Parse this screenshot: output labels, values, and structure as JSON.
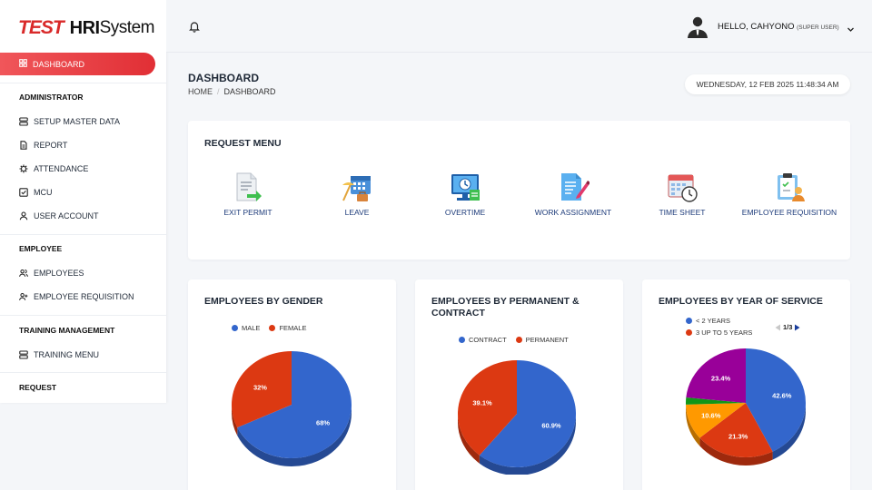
{
  "brand": {
    "test": "TEST",
    "hri": "HRI",
    "system": "System"
  },
  "sidebar": {
    "active": "DASHBOARD",
    "sections": [
      {
        "title": "ADMINISTRATOR",
        "items": [
          "SETUP MASTER DATA",
          "REPORT",
          "ATTENDANCE",
          "MCU",
          "USER ACCOUNT"
        ]
      },
      {
        "title": "EMPLOYEE",
        "items": [
          "EMPLOYEES",
          "EMPLOYEE REQUISITION"
        ]
      },
      {
        "title": "TRAINING MANAGEMENT",
        "items": [
          "TRAINING MENU"
        ]
      },
      {
        "title": "REQUEST",
        "items": []
      }
    ]
  },
  "topbar": {
    "greeting": "HELLO, CAHYONO",
    "role": "(SUPER USER)"
  },
  "page": {
    "title": "DASHBOARD",
    "breadcrumb_home": "HOME",
    "breadcrumb_sep": "/",
    "breadcrumb_current": "DASHBOARD",
    "datetime": "WEDNESDAY, 12 FEB 2025 11:48:34 AM"
  },
  "request_menu": {
    "title": "REQUEST MENU",
    "items": [
      {
        "label": "EXIT PERMIT",
        "icon": "exit-permit-icon"
      },
      {
        "label": "LEAVE",
        "icon": "leave-icon"
      },
      {
        "label": "OVERTIME",
        "icon": "overtime-icon"
      },
      {
        "label": "WORK ASSIGNMENT",
        "icon": "work-assignment-icon"
      },
      {
        "label": "TIME SHEET",
        "icon": "time-sheet-icon"
      },
      {
        "label": "EMPLOYEE REQUISITION",
        "icon": "employee-requisition-icon"
      }
    ]
  },
  "colors": {
    "blue": "#3366cc",
    "red": "#dc3912",
    "orange": "#ff9900",
    "green": "#109618",
    "purple": "#990099",
    "accent": "#e12f35"
  },
  "chart_data": [
    {
      "type": "pie",
      "title": "EMPLOYEES BY GENDER",
      "legend": [
        "MALE",
        "FEMALE"
      ],
      "slices": [
        {
          "name": "MALE",
          "value": 68,
          "label": "68%"
        },
        {
          "name": "FEMALE",
          "value": 32,
          "label": "32%"
        }
      ]
    },
    {
      "type": "pie",
      "title": "EMPLOYEES BY PERMANENT & CONTRACT",
      "legend": [
        "CONTRACT",
        "PERMANENT"
      ],
      "slices": [
        {
          "name": "CONTRACT",
          "value": 60.9,
          "label": "60.9%"
        },
        {
          "name": "PERMANENT",
          "value": 39.1,
          "label": "39.1%"
        }
      ]
    },
    {
      "type": "pie",
      "title": "EMPLOYEES BY YEAR OF SERVICE",
      "legend": [
        "< 2 YEARS",
        "3 UP TO 5 YEARS"
      ],
      "pager": "1/3",
      "slices": [
        {
          "name": "< 2 YEARS",
          "value": 42.6,
          "label": "42.6%"
        },
        {
          "name": "3 UP TO 5 YEARS",
          "value": 21.3,
          "label": "21.3%"
        },
        {
          "name": "",
          "value": 10.6,
          "label": "10.6%"
        },
        {
          "name": "",
          "value": 2.1,
          "label": ""
        },
        {
          "name": "",
          "value": 23.4,
          "label": "23.4%"
        }
      ]
    }
  ]
}
